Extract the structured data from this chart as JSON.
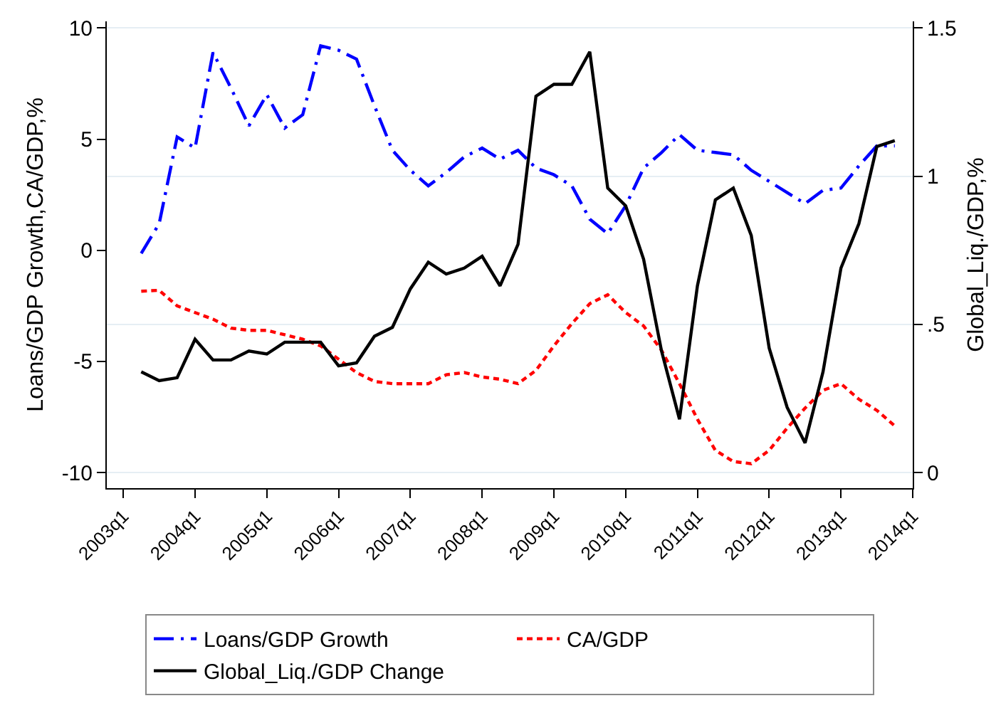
{
  "chart_data": {
    "type": "line",
    "ylabel": "Loans/GDP Growth,CA/GDP,%",
    "y2label": "Global_Liq./GDP,%",
    "categories": [
      "2003q1",
      null,
      null,
      null,
      "2004q1",
      null,
      null,
      null,
      "2005q1",
      null,
      null,
      null,
      "2006q1",
      null,
      null,
      null,
      "2007q1",
      null,
      null,
      null,
      "2008q1",
      null,
      null,
      null,
      "2009q1",
      null,
      null,
      null,
      "2010q1",
      null,
      null,
      null,
      "2011q1",
      null,
      null,
      null,
      "2012q1",
      null,
      null,
      null,
      "2013q1",
      null,
      null,
      null,
      "2014q1"
    ],
    "series": [
      {
        "name": "Loans/GDP Growth",
        "color": "#0000ff",
        "line_style": "dashdot",
        "values": [
          null,
          -0.14,
          1.2,
          5.1,
          4.6,
          8.9,
          7.3,
          5.6,
          7.0,
          5.5,
          6.1,
          9.2,
          9.0,
          8.6,
          6.5,
          4.5,
          3.6,
          2.9,
          3.5,
          4.2,
          4.6,
          4.1,
          4.5,
          3.7,
          3.4,
          2.9,
          1.4,
          0.75,
          2.0,
          3.7,
          4.4,
          5.2,
          4.5,
          4.4,
          4.3,
          3.6,
          3.1,
          2.6,
          2.1,
          2.7,
          2.8,
          3.8,
          4.7,
          4.7,
          null
        ]
      },
      {
        "name": "CA/GDP",
        "color": "#ff0000",
        "line_style": "dotted",
        "values": [
          null,
          -1.84,
          -1.8,
          -2.5,
          -2.8,
          -3.1,
          -3.5,
          -3.6,
          -3.6,
          -3.8,
          -4.0,
          -4.3,
          -4.9,
          -5.5,
          -5.9,
          -6.0,
          -6.0,
          -6.0,
          -5.6,
          -5.5,
          -5.7,
          -5.8,
          -6.0,
          -5.4,
          -4.3,
          -3.3,
          -2.4,
          -2.0,
          -2.8,
          -3.4,
          -4.5,
          -6.0,
          -7.6,
          -9.0,
          -9.5,
          -9.6,
          -9.0,
          -8.0,
          -7.1,
          -6.3,
          -6.0,
          -6.7,
          -7.2,
          -7.9,
          null
        ]
      },
      {
        "name": "Global_Liq./GDP Change",
        "color": "#000000",
        "line_style": "solid",
        "axis": "y2",
        "values": [
          null,
          0.34,
          0.31,
          0.32,
          0.45,
          0.38,
          0.38,
          0.41,
          0.4,
          0.44,
          0.44,
          0.44,
          0.36,
          0.37,
          0.46,
          0.49,
          0.62,
          0.71,
          0.67,
          0.69,
          0.73,
          0.63,
          0.77,
          1.27,
          1.31,
          1.31,
          1.42,
          0.96,
          0.9,
          0.72,
          0.41,
          0.18,
          0.63,
          0.92,
          0.96,
          0.8,
          0.42,
          0.22,
          0.1,
          0.34,
          0.69,
          0.84,
          1.1,
          1.12,
          null
        ]
      }
    ],
    "ylim": [
      -10.7,
      10.3
    ],
    "yticks": [
      -10,
      -5,
      0,
      5,
      10
    ],
    "y2lim": [
      -0.0525,
      1.5225
    ],
    "y2ticks": [
      0,
      {
        "value": 0.5,
        "label": ".5"
      },
      1,
      1.5
    ],
    "grid": "y2",
    "legend": "bottom",
    "marker": "none"
  }
}
